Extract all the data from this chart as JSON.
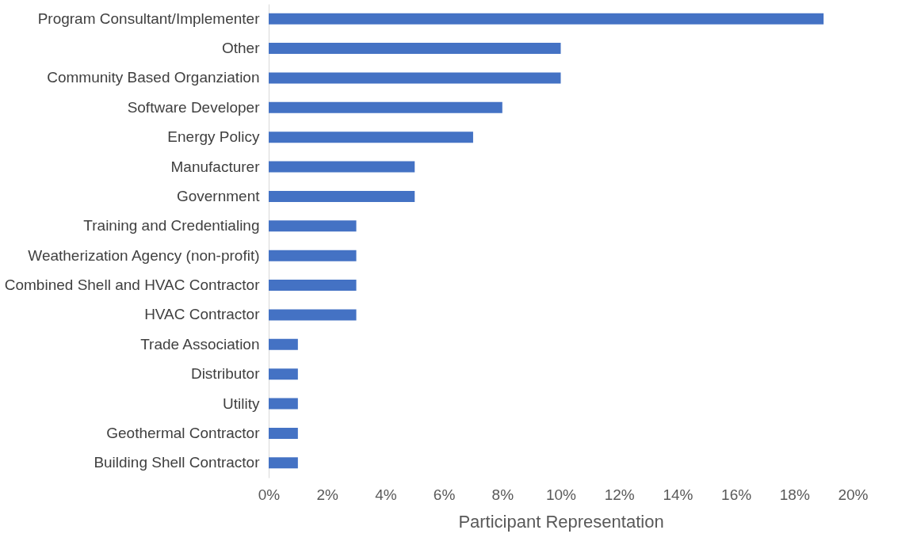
{
  "chart_data": {
    "type": "bar",
    "orientation": "horizontal",
    "xlabel": "Participant Representation",
    "categories": [
      "Program Consultant/Implementer",
      "Other",
      "Community Based Organziation",
      "Software Developer",
      "Energy Policy",
      "Manufacturer",
      "Government",
      "Training and Credentialing",
      "Weatherization Agency (non-profit)",
      "Combined Shell and HVAC Contractor",
      "HVAC Contractor",
      "Trade Association",
      "Distributor",
      "Utility",
      "Geothermal Contractor",
      "Building Shell Contractor"
    ],
    "values": [
      19,
      10,
      10,
      8,
      7,
      5,
      5,
      3,
      3,
      3,
      3,
      1,
      1,
      1,
      1,
      1
    ],
    "color": "#4472c4",
    "xlim": [
      0,
      20
    ],
    "xticks": [
      {
        "value": 0,
        "label": "0%"
      },
      {
        "value": 2,
        "label": "2%"
      },
      {
        "value": 4,
        "label": "4%"
      },
      {
        "value": 6,
        "label": "6%"
      },
      {
        "value": 8,
        "label": "8%"
      },
      {
        "value": 10,
        "label": "10%"
      },
      {
        "value": 12,
        "label": "12%"
      },
      {
        "value": 14,
        "label": "14%"
      },
      {
        "value": 16,
        "label": "16%"
      },
      {
        "value": 18,
        "label": "18%"
      },
      {
        "value": 20,
        "label": "20%"
      }
    ],
    "grid": false
  }
}
